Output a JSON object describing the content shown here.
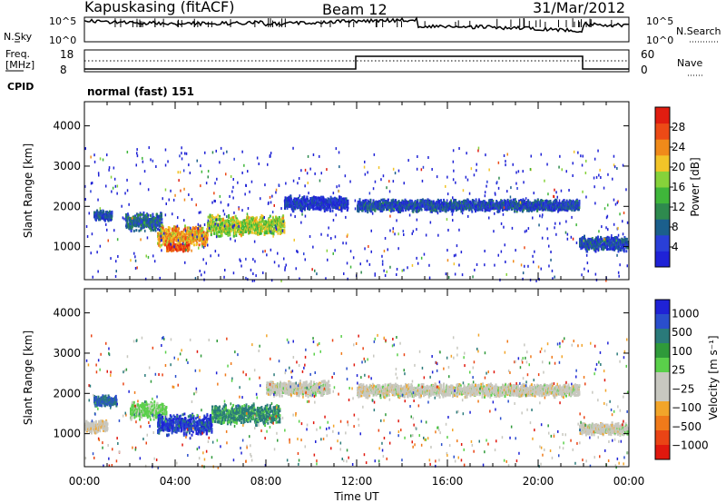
{
  "header": {
    "station": "Kapuskasing (fitACF)",
    "beam": "Beam 12",
    "date": "31/Mar/2012"
  },
  "noise_panel": {
    "left_label": "N.Sky",
    "right_label": "N.Search",
    "left_ticks": [
      "10^5",
      "10^0"
    ],
    "right_ticks": [
      "10^5",
      "10^0"
    ]
  },
  "freq_panel": {
    "left_label_1": "Freq.",
    "left_label_2": "[MHz]",
    "left_ticks": [
      "18",
      "8"
    ],
    "right_label": "Nave",
    "right_ticks": [
      "60",
      "0"
    ]
  },
  "cpid": {
    "label": "CPID",
    "mode": "normal (fast) 151"
  },
  "colors": {
    "power": [
      "#1f22d6",
      "#2a3fd8",
      "#1b5f8c",
      "#2e8a4e",
      "#3fb63a",
      "#86d23a",
      "#f2c428",
      "#f08a1a",
      "#ec4a16",
      "#e01d10"
    ],
    "velocity": [
      "#1f22d6",
      "#2a4ecc",
      "#2a7a7a",
      "#2f9a3a",
      "#5ad04a",
      "#c8c8c0",
      "#c8c8c0",
      "#f2a52a",
      "#f07a1a",
      "#ea4415",
      "#e0180e"
    ]
  },
  "chart_data": [
    {
      "type": "heatmap",
      "name_hint": "power",
      "ylabel": "Slant Range [km]",
      "xlim": [
        0,
        24
      ],
      "ylim": [
        180,
        4600
      ],
      "yticks": [
        1000,
        2000,
        3000,
        4000
      ],
      "colorbar": {
        "label": "Power [dB]",
        "range": [
          0,
          32
        ],
        "ticks": [
          "28",
          "24",
          "20",
          "16",
          "12",
          "8",
          "4"
        ]
      },
      "echo_bands": [
        {
          "t0": 0.4,
          "t1": 1.2,
          "center": 1800,
          "width": 180,
          "level": 6
        },
        {
          "t0": 1.8,
          "t1": 3.4,
          "center": 1650,
          "width": 300,
          "level": 8
        },
        {
          "t0": 3.2,
          "t1": 5.4,
          "center": 1300,
          "width": 350,
          "level": 22
        },
        {
          "t0": 3.6,
          "t1": 4.6,
          "center": 1000,
          "width": 120,
          "level": 28
        },
        {
          "t0": 5.4,
          "t1": 8.8,
          "center": 1550,
          "width": 350,
          "level": 18
        },
        {
          "t0": 8.8,
          "t1": 11.6,
          "center": 2100,
          "width": 250,
          "level": 4
        },
        {
          "t0": 12.0,
          "t1": 21.8,
          "center": 2050,
          "width": 200,
          "level": 6
        },
        {
          "t0": 21.8,
          "t1": 24.0,
          "center": 1100,
          "width": 250,
          "level": 6
        }
      ]
    },
    {
      "type": "heatmap",
      "name_hint": "velocity",
      "ylabel": "Slant Range [km]",
      "xlabel": "Time UT",
      "xlim": [
        0,
        24
      ],
      "ylim": [
        180,
        4600
      ],
      "yticks": [
        1000,
        2000,
        3000,
        4000
      ],
      "xticks": [
        "00:00",
        "04:00",
        "08:00",
        "12:00",
        "16:00",
        "20:00",
        "00:00"
      ],
      "colorbar": {
        "label": "Velocity [m s⁻¹]",
        "range": [
          -1000,
          1000
        ],
        "ticks": [
          "1000",
          "500",
          "100",
          "25",
          "−25",
          "−100",
          "−500",
          "−1000"
        ]
      },
      "echo_bands": [
        {
          "t0": 0.0,
          "t1": 1.0,
          "center": 1200,
          "width": 200,
          "level": -5
        },
        {
          "t0": 0.4,
          "t1": 1.4,
          "center": 1850,
          "width": 180,
          "level": 300
        },
        {
          "t0": 2.0,
          "t1": 3.6,
          "center": 1600,
          "width": 300,
          "level": 40
        },
        {
          "t0": 3.2,
          "t1": 5.6,
          "center": 1250,
          "width": 350,
          "level": 600
        },
        {
          "t0": 5.6,
          "t1": 8.6,
          "center": 1500,
          "width": 350,
          "level": 150
        },
        {
          "t0": 8.0,
          "t1": 10.8,
          "center": 2150,
          "width": 250,
          "level": 0
        },
        {
          "t0": 12.0,
          "t1": 21.8,
          "center": 2100,
          "width": 220,
          "level": 0
        },
        {
          "t0": 21.8,
          "t1": 24.0,
          "center": 1150,
          "width": 200,
          "level": 0
        }
      ]
    }
  ]
}
